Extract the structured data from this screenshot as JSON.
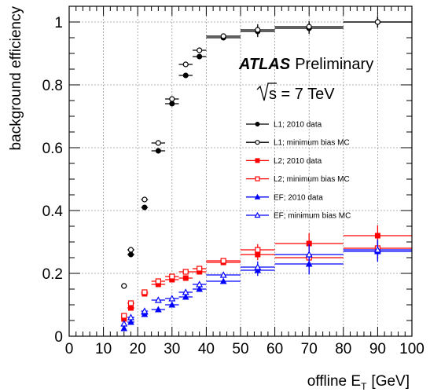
{
  "chart_data": {
    "type": "scatter",
    "title": "",
    "xlabel": "offline E",
    "xlabel_sub": "T",
    "xlabel_unit": "[GeV]",
    "ylabel": "background efficiency",
    "xlim": [
      0,
      100
    ],
    "ylim": [
      0,
      1.05
    ],
    "grid": true,
    "x_ticks": [
      "0",
      "10",
      "20",
      "30",
      "40",
      "50",
      "60",
      "70",
      "80",
      "90",
      "100"
    ],
    "y_ticks": [
      "0",
      "0.2",
      "0.4",
      "0.6",
      "0.8",
      "1"
    ],
    "annotation_experiment": "ATLAS",
    "annotation_status": "Preliminary",
    "annotation_energy": "s = 7 TeV",
    "legend_position": "right",
    "series": [
      {
        "name": "L1; 2010 data",
        "color": "#000000",
        "marker": "filled-circle",
        "x": [
          16,
          18,
          22,
          26,
          30,
          34,
          38,
          45,
          55,
          70,
          90
        ],
        "xerr": [
          0.5,
          1,
          1,
          2,
          2,
          2,
          2,
          5,
          5,
          10,
          10
        ],
        "y": [
          0.16,
          0.26,
          0.41,
          0.59,
          0.74,
          0.83,
          0.89,
          0.95,
          0.97,
          0.98,
          1.0
        ]
      },
      {
        "name": "L1; minimum bias MC",
        "color": "#000000",
        "marker": "open-circle",
        "x": [
          16,
          18,
          22,
          26,
          30,
          34,
          38,
          45,
          55,
          70,
          90
        ],
        "xerr": [
          0.5,
          1,
          1,
          2,
          2,
          2,
          2,
          5,
          5,
          10,
          10
        ],
        "y": [
          0.16,
          0.275,
          0.435,
          0.615,
          0.755,
          0.865,
          0.91,
          0.955,
          0.975,
          0.985,
          1.0
        ]
      },
      {
        "name": "L2; 2010 data",
        "color": "#ff0000",
        "marker": "filled-square",
        "x": [
          16,
          18,
          22,
          26,
          30,
          34,
          38,
          45,
          55,
          70,
          90
        ],
        "xerr": [
          0.5,
          1,
          1,
          2,
          2,
          2,
          2,
          5,
          5,
          10,
          10
        ],
        "y": [
          0.055,
          0.09,
          0.135,
          0.165,
          0.18,
          0.185,
          0.205,
          0.235,
          0.26,
          0.295,
          0.32
        ]
      },
      {
        "name": "L2; minimum bias MC",
        "color": "#ff0000",
        "marker": "open-square",
        "x": [
          16,
          18,
          22,
          26,
          30,
          34,
          38,
          45,
          55,
          70,
          90
        ],
        "xerr": [
          0.5,
          1,
          1,
          2,
          2,
          2,
          2,
          5,
          5,
          10,
          10
        ],
        "y": [
          0.065,
          0.105,
          0.14,
          0.175,
          0.19,
          0.205,
          0.215,
          0.24,
          0.275,
          0.25,
          0.28
        ]
      },
      {
        "name": "EF; 2010 data",
        "color": "#0000ff",
        "marker": "filled-triangle",
        "x": [
          16,
          18,
          22,
          26,
          30,
          34,
          38,
          45,
          55,
          70,
          90
        ],
        "xerr": [
          0.5,
          1,
          1,
          2,
          2,
          2,
          2,
          5,
          5,
          10,
          10
        ],
        "y": [
          0.025,
          0.045,
          0.07,
          0.085,
          0.1,
          0.125,
          0.15,
          0.175,
          0.21,
          0.23,
          0.27
        ]
      },
      {
        "name": "EF; minimum bias MC",
        "color": "#0000ff",
        "marker": "open-triangle",
        "x": [
          16,
          18,
          22,
          26,
          30,
          34,
          38,
          45,
          55,
          70,
          90
        ],
        "xerr": [
          0.5,
          1,
          1,
          2,
          2,
          2,
          2,
          5,
          5,
          10,
          10
        ],
        "y": [
          0.04,
          0.06,
          0.08,
          0.115,
          0.12,
          0.14,
          0.165,
          0.195,
          0.22,
          0.26,
          0.275
        ]
      }
    ]
  }
}
